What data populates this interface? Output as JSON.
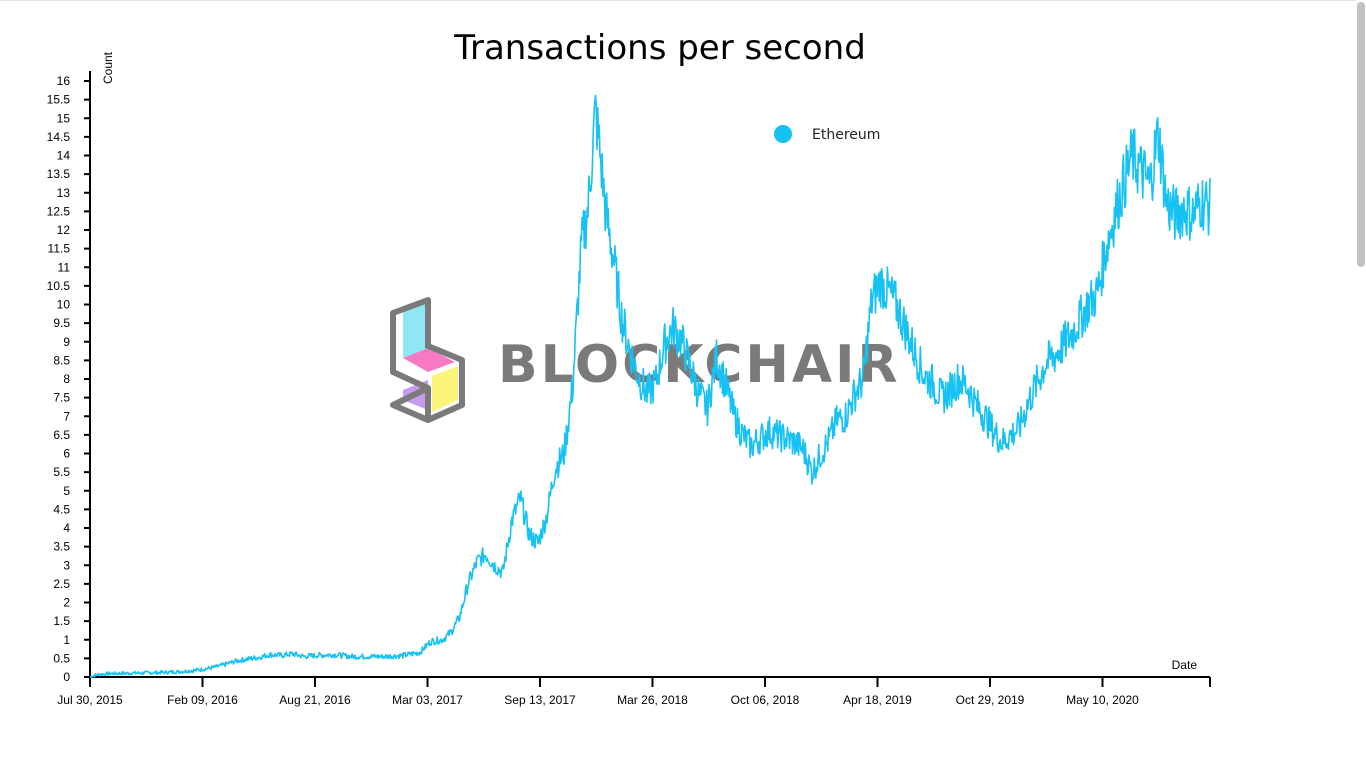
{
  "chart_data": {
    "type": "line",
    "title": "Transactions per second",
    "xlabel": "Date",
    "ylabel": "Count",
    "ylim": [
      0,
      16
    ],
    "y_ticks": [
      "0",
      "0.5",
      "1",
      "1.5",
      "2",
      "2.5",
      "3",
      "3.5",
      "4",
      "4.5",
      "5",
      "5.5",
      "6",
      "6.5",
      "7",
      "7.5",
      "8",
      "8.5",
      "9",
      "9.5",
      "10",
      "10.5",
      "11",
      "11.5",
      "12",
      "12.5",
      "13",
      "13.5",
      "14",
      "14.5",
      "15",
      "15.5",
      "16"
    ],
    "x_ticks": [
      "Jul 30, 2015",
      "Feb 09, 2016",
      "Aug 21, 2016",
      "Mar 03, 2017",
      "Sep 13, 2017",
      "Mar 26, 2018",
      "Oct 06, 2018",
      "Apr 18, 2019",
      "Oct 29, 2019",
      "May 10, 2020"
    ],
    "x_range": [
      "2015-07-30",
      "2020-12-20"
    ],
    "grid": false,
    "legend_position": "top-center",
    "series": [
      {
        "name": "Ethereum",
        "color": "#16c1f3",
        "points": [
          [
            "2015-07-30",
            0.0
          ],
          [
            "2015-08-10",
            0.06
          ],
          [
            "2015-09-01",
            0.09
          ],
          [
            "2015-10-01",
            0.1
          ],
          [
            "2015-11-01",
            0.11
          ],
          [
            "2015-12-01",
            0.12
          ],
          [
            "2016-01-01",
            0.14
          ],
          [
            "2016-02-01",
            0.18
          ],
          [
            "2016-03-01",
            0.25
          ],
          [
            "2016-03-20",
            0.32
          ],
          [
            "2016-04-10",
            0.42
          ],
          [
            "2016-05-01",
            0.48
          ],
          [
            "2016-05-20",
            0.52
          ],
          [
            "2016-06-10",
            0.6
          ],
          [
            "2016-07-01",
            0.58
          ],
          [
            "2016-07-20",
            0.62
          ],
          [
            "2016-08-10",
            0.55
          ],
          [
            "2016-09-01",
            0.58
          ],
          [
            "2016-10-01",
            0.6
          ],
          [
            "2016-11-01",
            0.55
          ],
          [
            "2016-12-01",
            0.55
          ],
          [
            "2017-01-01",
            0.55
          ],
          [
            "2017-02-01",
            0.58
          ],
          [
            "2017-03-01",
            0.66
          ],
          [
            "2017-03-20",
            0.95
          ],
          [
            "2017-04-10",
            1.0
          ],
          [
            "2017-04-25",
            1.2
          ],
          [
            "2017-05-10",
            1.6
          ],
          [
            "2017-05-25",
            2.5
          ],
          [
            "2017-06-10",
            3.1
          ],
          [
            "2017-06-25",
            3.3
          ],
          [
            "2017-07-10",
            3.0
          ],
          [
            "2017-07-25",
            2.8
          ],
          [
            "2017-08-10",
            4.2
          ],
          [
            "2017-08-25",
            4.8
          ],
          [
            "2017-09-10",
            3.8
          ],
          [
            "2017-09-25",
            3.6
          ],
          [
            "2017-10-10",
            4.3
          ],
          [
            "2017-10-25",
            5.6
          ],
          [
            "2017-11-10",
            6.0
          ],
          [
            "2017-11-25",
            7.8
          ],
          [
            "2017-12-10",
            11.5
          ],
          [
            "2017-12-22",
            12.6
          ],
          [
            "2018-01-04",
            15.2
          ],
          [
            "2018-01-12",
            14.1
          ],
          [
            "2018-01-22",
            12.5
          ],
          [
            "2018-02-05",
            11.2
          ],
          [
            "2018-02-20",
            9.6
          ],
          [
            "2018-03-05",
            8.8
          ],
          [
            "2018-03-20",
            8.1
          ],
          [
            "2018-04-05",
            7.6
          ],
          [
            "2018-04-20",
            7.9
          ],
          [
            "2018-05-05",
            8.9
          ],
          [
            "2018-05-20",
            9.4
          ],
          [
            "2018-06-05",
            9.0
          ],
          [
            "2018-06-20",
            8.3
          ],
          [
            "2018-07-05",
            7.6
          ],
          [
            "2018-07-20",
            7.2
          ],
          [
            "2018-08-05",
            8.6
          ],
          [
            "2018-08-20",
            7.9
          ],
          [
            "2018-09-05",
            7.0
          ],
          [
            "2018-09-20",
            6.5
          ],
          [
            "2018-10-05",
            6.2
          ],
          [
            "2018-10-20",
            6.4
          ],
          [
            "2018-11-05",
            6.6
          ],
          [
            "2018-11-20",
            6.5
          ],
          [
            "2018-12-05",
            6.4
          ],
          [
            "2018-12-20",
            6.3
          ],
          [
            "2019-01-05",
            6.1
          ],
          [
            "2019-01-20",
            5.5
          ],
          [
            "2019-02-05",
            6.0
          ],
          [
            "2019-02-20",
            6.4
          ],
          [
            "2019-03-05",
            6.9
          ],
          [
            "2019-03-20",
            7.0
          ],
          [
            "2019-04-05",
            7.6
          ],
          [
            "2019-04-20",
            8.0
          ],
          [
            "2019-05-05",
            10.1
          ],
          [
            "2019-05-20",
            10.6
          ],
          [
            "2019-06-05",
            10.3
          ],
          [
            "2019-06-20",
            9.9
          ],
          [
            "2019-07-05",
            9.3
          ],
          [
            "2019-07-20",
            8.7
          ],
          [
            "2019-08-05",
            8.1
          ],
          [
            "2019-08-20",
            7.9
          ],
          [
            "2019-09-05",
            7.5
          ],
          [
            "2019-09-20",
            7.7
          ],
          [
            "2019-10-05",
            8.0
          ],
          [
            "2019-10-20",
            7.8
          ],
          [
            "2019-11-05",
            7.3
          ],
          [
            "2019-11-20",
            7.0
          ],
          [
            "2019-12-05",
            6.6
          ],
          [
            "2019-12-20",
            6.3
          ],
          [
            "2020-01-05",
            6.5
          ],
          [
            "2020-01-20",
            6.7
          ],
          [
            "2020-02-05",
            7.4
          ],
          [
            "2020-02-20",
            7.9
          ],
          [
            "2020-03-05",
            8.4
          ],
          [
            "2020-03-20",
            8.6
          ],
          [
            "2020-04-05",
            8.9
          ],
          [
            "2020-04-20",
            9.2
          ],
          [
            "2020-05-05",
            9.6
          ],
          [
            "2020-05-20",
            10.0
          ],
          [
            "2020-06-05",
            10.3
          ],
          [
            "2020-06-20",
            11.5
          ],
          [
            "2020-07-05",
            12.4
          ],
          [
            "2020-07-20",
            13.2
          ],
          [
            "2020-08-05",
            14.0
          ],
          [
            "2020-08-20",
            13.6
          ],
          [
            "2020-09-05",
            13.2
          ],
          [
            "2020-09-20",
            14.6
          ],
          [
            "2020-10-05",
            12.7
          ],
          [
            "2020-10-20",
            12.4
          ],
          [
            "2020-11-05",
            12.6
          ],
          [
            "2020-11-20",
            12.4
          ],
          [
            "2020-12-05",
            12.8
          ],
          [
            "2020-12-20",
            12.6
          ]
        ]
      }
    ]
  },
  "watermark": {
    "text": "BLOCKCHAIR",
    "logo_colors": [
      "#8fe6f6",
      "#f77bc4",
      "#c79bf0",
      "#fbf57c"
    ],
    "gray": "#7a7a7a"
  },
  "legend": {
    "label": "Ethereum",
    "color": "#16c1f3"
  }
}
